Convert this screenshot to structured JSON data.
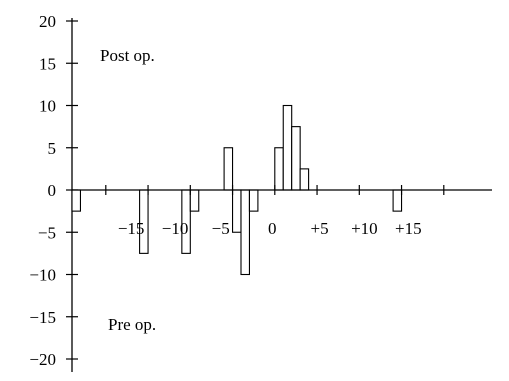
{
  "chart_data": {
    "type": "bar",
    "title": "",
    "xlabel": "",
    "ylabel": "",
    "ylim": [
      -20,
      20
    ],
    "xlim": [
      -24,
      24
    ],
    "grid": false,
    "legend": "none",
    "annotations": [
      "Post op.",
      "Pre op."
    ],
    "x_tick_labels": [
      "−15",
      "−10",
      "−5",
      "0",
      "+5",
      "+10",
      "+15"
    ],
    "y_tick_labels": [
      "20",
      "15",
      "10",
      "5",
      "0",
      "−5",
      "−10",
      "−15",
      "−20"
    ],
    "bar_width": 1,
    "bars": [
      {
        "x": -23.5,
        "value": -2.5
      },
      {
        "x": -15.5,
        "value": -7.5
      },
      {
        "x": -10.5,
        "value": -7.5
      },
      {
        "x": -9.5,
        "value": -2.5
      },
      {
        "x": -5.5,
        "value": 5
      },
      {
        "x": -4.5,
        "value": -5
      },
      {
        "x": -3.5,
        "value": -10
      },
      {
        "x": -2.5,
        "value": -2.5
      },
      {
        "x": 0.5,
        "value": 5
      },
      {
        "x": 1.5,
        "value": 10
      },
      {
        "x": 2.5,
        "value": 7.5
      },
      {
        "x": 3.5,
        "value": 2.5
      },
      {
        "x": 14.5,
        "value": -2.5
      }
    ]
  },
  "colors": {
    "ink": "#000000",
    "bar_fill": "#ffffff"
  }
}
